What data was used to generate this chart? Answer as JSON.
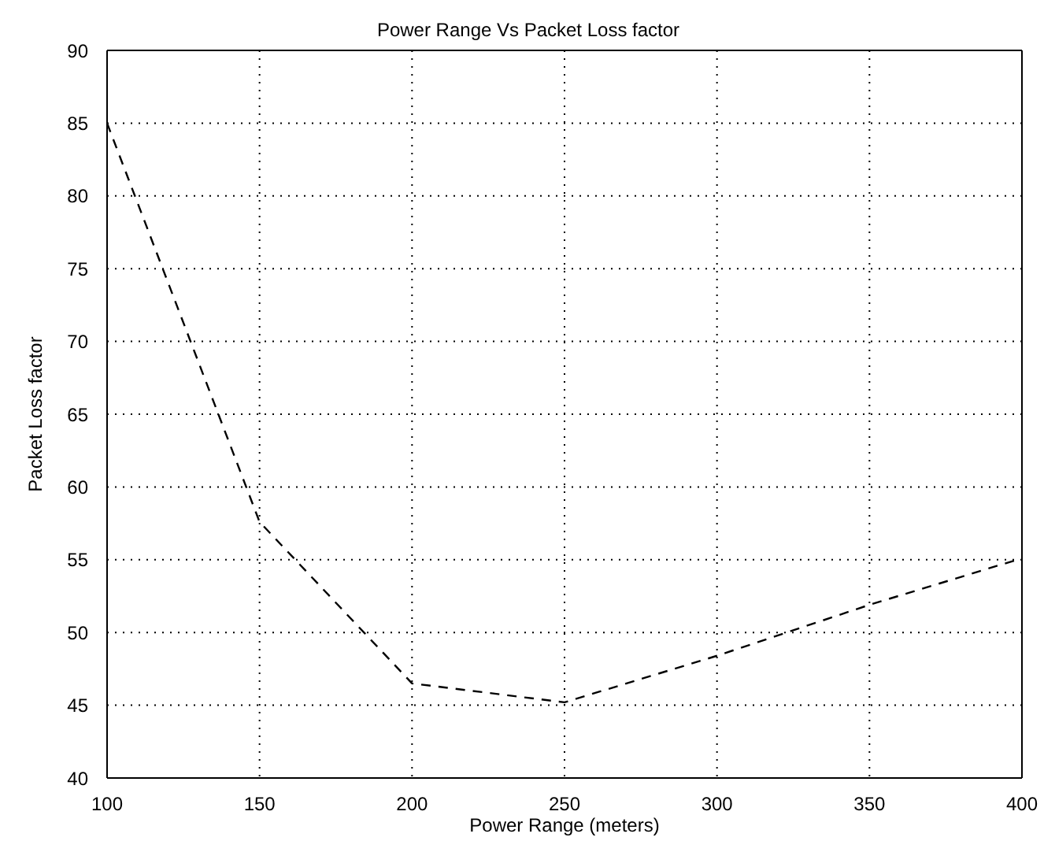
{
  "chart_data": {
    "type": "line",
    "title": "Power Range Vs Packet Loss factor",
    "xlabel": "Power Range (meters)",
    "ylabel": "Packet Loss factor",
    "x": [
      100,
      150,
      200,
      250,
      300,
      350,
      400
    ],
    "series": [
      {
        "color": "#000000",
        "values": [
          85,
          57.6,
          46.5,
          45.2,
          48.4,
          51.9,
          55.1
        ]
      }
    ],
    "xlim": [
      100,
      400
    ],
    "xticks": [
      100,
      150,
      200,
      250,
      300,
      350,
      400
    ],
    "ylim": [
      40,
      90
    ],
    "yticks": [
      40,
      45,
      50,
      55,
      60,
      65,
      70,
      75,
      80,
      85,
      90
    ],
    "grid": true,
    "line_style": "dashed",
    "marker": "none"
  }
}
